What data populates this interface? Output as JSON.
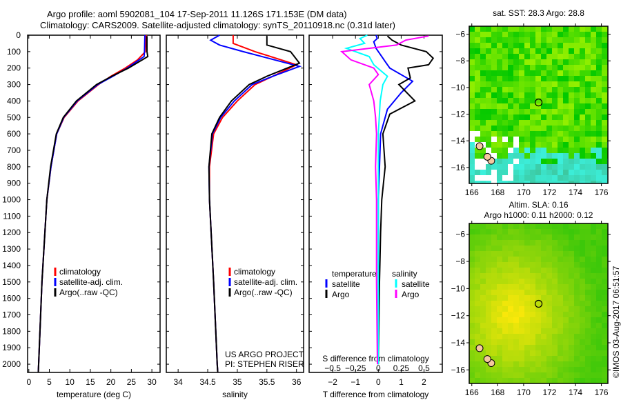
{
  "title": {
    "line1": "Argo profile: aoml 5902081_104 17-Sep-2011 11.126S 171.153E (DM data)",
    "line2": "Climatology: CARS2009. Satellite-adjusted climatology: synTS_20110918.nc (0.31d later)"
  },
  "colors": {
    "climatology": "#ff0000",
    "satellite": "#0000ff",
    "argo": "#000000",
    "sal_satellite": "#00ffff",
    "sal_argo": "#ff00ff"
  },
  "footer": {
    "project": "US ARGO PROJECT",
    "pi": "PI: STEPHEN RISER",
    "stamp": "©IMOS 03-Aug-2017 06:51:57"
  },
  "chart_data": [
    {
      "type": "line",
      "id": "temp",
      "xlabel": "temperature (deg C)",
      "ylabel": "",
      "xlim": [
        -0.3,
        32
      ],
      "ylim": [
        2050,
        0
      ],
      "xticks": [
        0,
        5,
        10,
        15,
        20,
        25,
        30
      ],
      "yticks": [
        0,
        100,
        200,
        300,
        400,
        500,
        600,
        700,
        800,
        900,
        1000,
        1100,
        1200,
        1300,
        1400,
        1500,
        1600,
        1700,
        1800,
        1900,
        2000
      ],
      "legend": [
        "climatology",
        "satellite-adj. clim.",
        "Argo(..raw -QC)"
      ],
      "series": [
        {
          "name": "climatology",
          "color": "#ff0000",
          "depth": [
            0,
            100,
            150,
            200,
            250,
            300,
            400,
            500,
            600,
            800,
            1000,
            1500,
            2000,
            2050
          ],
          "values": [
            28.6,
            28.4,
            26.5,
            23.5,
            20,
            17,
            12,
            8.6,
            6.8,
            5.4,
            4.4,
            3.2,
            2.4,
            2.3
          ]
        },
        {
          "name": "satellite-adj. clim.",
          "color": "#0000ff",
          "depth": [
            0,
            100,
            130,
            200,
            250,
            300,
            400,
            500,
            600,
            800,
            1000,
            1500,
            2000,
            2050
          ],
          "values": [
            28.3,
            28.2,
            28.1,
            24,
            20.5,
            16.8,
            11.8,
            8.5,
            6.8,
            5.4,
            4.4,
            3.2,
            2.4,
            2.3
          ]
        },
        {
          "name": "Argo(..raw -QC)",
          "color": "#000000",
          "depth": [
            5,
            100,
            130,
            200,
            250,
            300,
            400,
            500,
            600,
            800,
            1000,
            1500,
            2000,
            2050
          ],
          "values": [
            28.8,
            28.8,
            29,
            24.3,
            20.2,
            16.5,
            11.6,
            8.4,
            6.7,
            5.3,
            4.4,
            3.2,
            2.4,
            2.3
          ]
        }
      ]
    },
    {
      "type": "line",
      "id": "sal",
      "xlabel": "salinity",
      "xlim": [
        33.8,
        36.12
      ],
      "ylim": [
        2050,
        0
      ],
      "xticks": [
        34,
        34.5,
        35,
        35.5,
        36
      ],
      "legend": [
        "climatology",
        "satellite-adj. clim.",
        "Argo(..raw -QC)"
      ],
      "series": [
        {
          "name": "climatology",
          "color": "#ff0000",
          "depth": [
            0,
            50,
            100,
            180,
            250,
            300,
            400,
            500,
            600,
            800,
            1000,
            1500,
            2000,
            2050
          ],
          "values": [
            34.93,
            34.93,
            35.3,
            36.0,
            35.6,
            35.3,
            35.0,
            34.75,
            34.6,
            34.53,
            34.53,
            34.6,
            34.66,
            34.67
          ]
        },
        {
          "name": "satellite-adj. clim.",
          "color": "#0000ff",
          "depth": [
            0,
            30,
            60,
            100,
            190,
            250,
            300,
            400,
            500,
            600,
            800,
            1000,
            1500,
            2000,
            2050
          ],
          "values": [
            34.7,
            34.55,
            34.7,
            35.1,
            36.05,
            35.6,
            35.25,
            34.95,
            34.72,
            34.58,
            34.52,
            34.53,
            34.6,
            34.66,
            34.67
          ]
        },
        {
          "name": "Argo(..raw -QC)",
          "color": "#000000",
          "depth": [
            5,
            60,
            70,
            100,
            170,
            250,
            300,
            400,
            500,
            600,
            800,
            1000,
            1500,
            2000,
            2050
          ],
          "values": [
            35.5,
            35.5,
            35.6,
            35.9,
            36.05,
            35.5,
            35.2,
            34.9,
            34.7,
            34.57,
            34.52,
            34.53,
            34.6,
            34.66,
            34.67
          ]
        }
      ]
    },
    {
      "type": "line",
      "id": "diff",
      "xlabel": "T difference from climatology",
      "x2label": "S difference from climatology",
      "xlim": [
        -3.03,
        2.8
      ],
      "ylim": [
        2050,
        0
      ],
      "xticks": [
        -2,
        -1,
        0,
        1,
        2
      ],
      "x2ticks": [
        -0.5,
        -0.25,
        0,
        0.25,
        0.5
      ],
      "x2scale": 0.25,
      "legend": {
        "temperature": "temperature",
        "salinity": "salinity",
        "t_items": [
          "satellite",
          "Argo"
        ],
        "s_items": [
          "satellite",
          "Argo"
        ]
      },
      "series": [
        {
          "name": "T satellite",
          "color": "#0000ff",
          "depth": [
            0,
            20,
            40,
            80,
            120,
            160,
            200,
            280,
            350,
            450,
            600,
            800,
            1000,
            1500,
            2000
          ],
          "values": [
            -0.1,
            -0.05,
            -0.2,
            -0.1,
            0.1,
            0.3,
            0.5,
            1.5,
            1.0,
            0.4,
            0.1,
            0.05,
            0,
            0,
            0
          ]
        },
        {
          "name": "T Argo",
          "color": "#000000",
          "depth": [
            5,
            30,
            60,
            100,
            140,
            180,
            200,
            260,
            300,
            400,
            480,
            600,
            800,
            1000,
            1200,
            1500,
            2000
          ],
          "values": [
            0.4,
            0.6,
            1.0,
            2.1,
            2.4,
            2.2,
            1.3,
            1.4,
            0.9,
            1.6,
            0.5,
            0.2,
            0.3,
            0.15,
            0.1,
            0.05,
            0
          ]
        },
        {
          "name": "S satellite",
          "color": "#00ffff",
          "depth": [
            0,
            20,
            50,
            80,
            130,
            180,
            250,
            300,
            400,
            600,
            1000,
            2000
          ],
          "values": [
            -0.12,
            -0.2,
            -0.15,
            -0.35,
            -0.1,
            -0.05,
            0.1,
            0.05,
            0.02,
            0,
            0,
            0
          ]
        },
        {
          "name": "S Argo",
          "color": "#ff00ff",
          "depth": [
            5,
            30,
            60,
            100,
            150,
            200,
            240,
            300,
            400,
            500,
            600,
            800,
            1000,
            1500,
            2000
          ],
          "values": [
            0.55,
            0.3,
            0.2,
            -0.4,
            -0.3,
            -0.05,
            0.0,
            -0.1,
            -0.05,
            -0.03,
            -0.02,
            -0.03,
            -0.02,
            -0.02,
            -0.01
          ]
        }
      ]
    },
    {
      "type": "heatmap",
      "id": "sst",
      "title": "sat. SST: 28.3 Argo: 28.8",
      "xlim": [
        165.8,
        176.5
      ],
      "ylim": [
        -17.2,
        -5.4
      ],
      "xticks": [
        166,
        168,
        170,
        172,
        174,
        176
      ],
      "yticks": [
        -6,
        -8,
        -10,
        -12,
        -14,
        -16
      ],
      "argo": {
        "lon": 171.153,
        "lat": -11.126
      }
    },
    {
      "type": "heatmap",
      "id": "sla",
      "title": "Altim. SLA: 0.16",
      "subtitle": "Argo h1000: 0.11 h2000: 0.12",
      "xlim": [
        165.8,
        176.5
      ],
      "ylim": [
        -17,
        -5.2
      ],
      "xticks": [
        166,
        168,
        170,
        172,
        174,
        176
      ],
      "yticks": [
        -6,
        -8,
        -10,
        -12,
        -14,
        -16
      ],
      "argo": {
        "lon": 171.153,
        "lat": -11.126
      }
    }
  ]
}
